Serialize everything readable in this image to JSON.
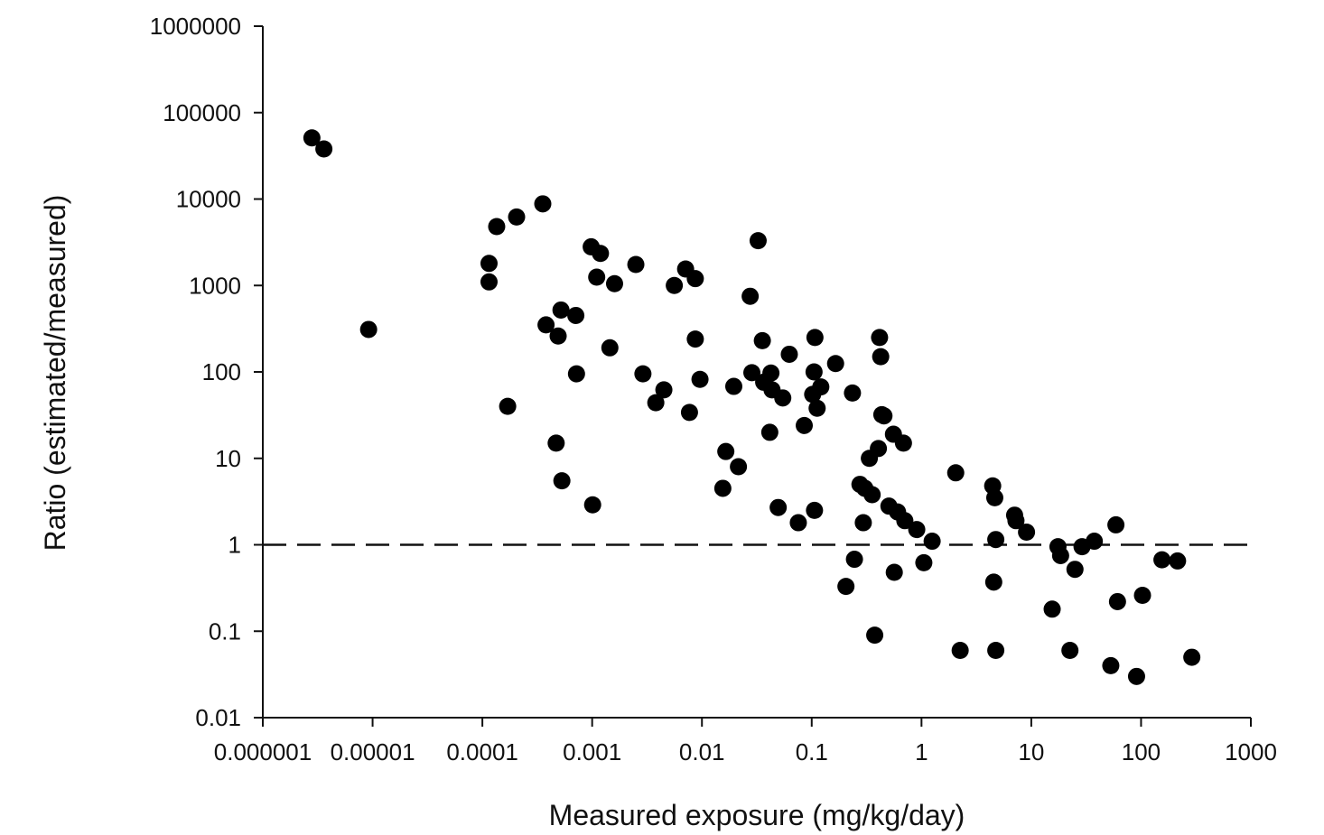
{
  "chart_data": {
    "type": "scatter",
    "title": "",
    "xlabel": "Measured exposure (mg/kg/day)",
    "ylabel": "Ratio (estimated/measured)",
    "xscale": "log",
    "yscale": "log",
    "xlim": [
      1e-06,
      1000
    ],
    "ylim": [
      0.01,
      1000000
    ],
    "x_ticks": [
      "0.000001",
      "0.00001",
      "0.0001",
      "0.001",
      "0.01",
      "0.1",
      "1",
      "10",
      "100",
      "1000"
    ],
    "y_ticks": [
      "0.01",
      "0.1",
      "1",
      "10",
      "100",
      "1000",
      "10000",
      "100000",
      "1000000"
    ],
    "grid": false,
    "legend": "none",
    "reference_line": {
      "y": 1,
      "style": "dashed"
    },
    "marker_color": "#000000",
    "points": [
      [
        2.8e-06,
        51000
      ],
      [
        3.6e-06,
        38000
      ],
      [
        9.2e-06,
        310
      ],
      [
        0.000115,
        1800
      ],
      [
        0.000115,
        1100
      ],
      [
        0.000135,
        4800
      ],
      [
        0.000205,
        6200
      ],
      [
        0.000355,
        8800
      ],
      [
        0.00017,
        40
      ],
      [
        0.00038,
        350
      ],
      [
        0.00049,
        260
      ],
      [
        0.00052,
        520
      ],
      [
        0.00071,
        450
      ],
      [
        0.00047,
        15
      ],
      [
        0.00053,
        5.5
      ],
      [
        0.00072,
        95
      ],
      [
        0.00098,
        2800
      ],
      [
        0.0011,
        1250
      ],
      [
        0.00119,
        2350
      ],
      [
        0.0016,
        1050
      ],
      [
        0.00101,
        2.9
      ],
      [
        0.00145,
        190
      ],
      [
        0.0025,
        1750
      ],
      [
        0.0029,
        95
      ],
      [
        0.0038,
        44
      ],
      [
        0.0045,
        62
      ],
      [
        0.0056,
        1000
      ],
      [
        0.0071,
        1550
      ],
      [
        0.0077,
        34
      ],
      [
        0.0087,
        1200
      ],
      [
        0.0087,
        240
      ],
      [
        0.0096,
        82
      ],
      [
        0.0155,
        4.5
      ],
      [
        0.0165,
        12
      ],
      [
        0.0195,
        68
      ],
      [
        0.0215,
        8
      ],
      [
        0.0275,
        750
      ],
      [
        0.0285,
        98
      ],
      [
        0.0325,
        3300
      ],
      [
        0.0355,
        230
      ],
      [
        0.0365,
        76
      ],
      [
        0.0415,
        20
      ],
      [
        0.0425,
        97
      ],
      [
        0.0435,
        62
      ],
      [
        0.0495,
        2.7
      ],
      [
        0.0545,
        50
      ],
      [
        0.0625,
        160
      ],
      [
        0.0755,
        1.8
      ],
      [
        0.0855,
        24
      ],
      [
        0.105,
        100
      ],
      [
        0.106,
        2.5
      ],
      [
        0.107,
        250
      ],
      [
        0.102,
        55
      ],
      [
        0.112,
        38
      ],
      [
        0.121,
        67
      ],
      [
        0.165,
        125
      ],
      [
        0.205,
        0.33
      ],
      [
        0.235,
        57
      ],
      [
        0.245,
        0.68
      ],
      [
        0.275,
        5
      ],
      [
        0.295,
        1.8
      ],
      [
        0.305,
        4.5
      ],
      [
        0.335,
        10
      ],
      [
        0.355,
        3.8
      ],
      [
        0.375,
        0.09
      ],
      [
        0.405,
        13
      ],
      [
        0.415,
        250
      ],
      [
        0.425,
        150
      ],
      [
        0.435,
        32
      ],
      [
        0.455,
        31
      ],
      [
        0.505,
        2.8
      ],
      [
        0.555,
        19
      ],
      [
        0.565,
        0.48
      ],
      [
        0.605,
        2.4
      ],
      [
        0.685,
        15
      ],
      [
        0.705,
        1.9
      ],
      [
        0.905,
        1.5
      ],
      [
        1.05,
        0.62
      ],
      [
        1.25,
        1.1
      ],
      [
        2.05,
        6.8
      ],
      [
        2.25,
        0.06
      ],
      [
        4.45,
        4.8
      ],
      [
        4.55,
        0.37
      ],
      [
        4.65,
        3.5
      ],
      [
        4.75,
        1.15
      ],
      [
        4.75,
        0.06
      ],
      [
        7.05,
        2.2
      ],
      [
        7.25,
        1.9
      ],
      [
        9.05,
        1.4
      ],
      [
        15.5,
        0.18
      ],
      [
        17.5,
        0.95
      ],
      [
        18.5,
        0.75
      ],
      [
        22.5,
        0.06
      ],
      [
        25,
        0.52
      ],
      [
        29,
        0.95
      ],
      [
        37.5,
        1.1
      ],
      [
        53,
        0.04
      ],
      [
        59,
        1.7
      ],
      [
        61,
        0.22
      ],
      [
        91,
        0.03
      ],
      [
        103,
        0.26
      ],
      [
        155,
        0.67
      ],
      [
        215,
        0.65
      ],
      [
        290,
        0.05
      ]
    ]
  }
}
